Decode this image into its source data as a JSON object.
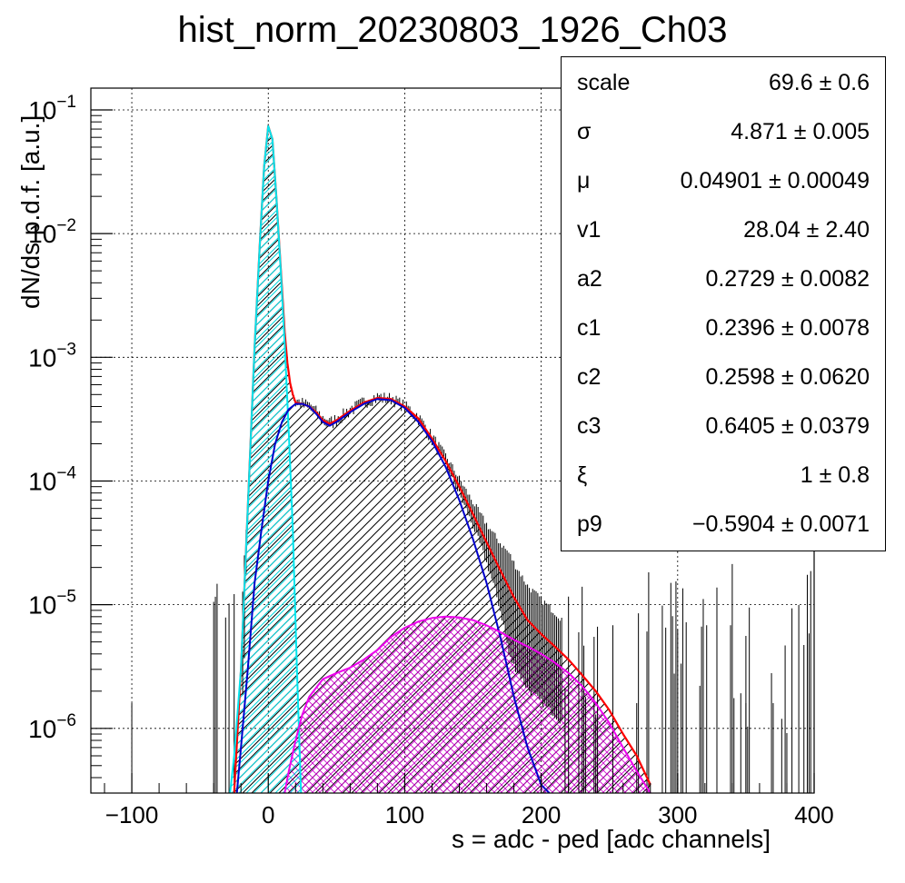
{
  "chart_data": {
    "type": "line",
    "title": "hist_norm_20230803_1926_Ch03",
    "xlabel": "s = adc - ped [adc channels]",
    "ylabel": "dN/ds p.d.f. [a.u.]",
    "xlim": [
      -130,
      400
    ],
    "ylim": [
      3e-07,
      0.15
    ],
    "yscale": "log",
    "grid": true,
    "x_ticks": [
      {
        "value": -100,
        "label": "−100"
      },
      {
        "value": 0,
        "label": "0"
      },
      {
        "value": 100,
        "label": "100"
      },
      {
        "value": 200,
        "label": "200"
      },
      {
        "value": 300,
        "label": "300"
      },
      {
        "value": 400,
        "label": "400"
      }
    ],
    "y_ticks": [
      {
        "value": 0.1,
        "base": "10",
        "exp": "−1"
      },
      {
        "value": 0.01,
        "base": "10",
        "exp": "−2"
      },
      {
        "value": 0.001,
        "base": "10",
        "exp": "−3"
      },
      {
        "value": 0.0001,
        "base": "10",
        "exp": "−4"
      },
      {
        "value": 1e-05,
        "base": "10",
        "exp": "−5"
      },
      {
        "value": 1e-06,
        "base": "10",
        "exp": "−6"
      }
    ],
    "series": [
      {
        "color": "#ff0000",
        "x": [
          -25,
          -20,
          -15,
          -10,
          -6,
          -3,
          0,
          3,
          6,
          9,
          12,
          14,
          16,
          18,
          20,
          25,
          30,
          35,
          40,
          45,
          50,
          60,
          70,
          80,
          90,
          100,
          110,
          120,
          130,
          140,
          150,
          160,
          170,
          180,
          190,
          200,
          210,
          220,
          230,
          240,
          250,
          260,
          270,
          280
        ],
        "y": [
          3e-07,
          3e-06,
          6e-05,
          0.0012,
          0.009,
          0.035,
          0.074,
          0.058,
          0.019,
          0.0055,
          0.0016,
          0.0009,
          0.00062,
          0.0005,
          0.00043,
          0.00042,
          0.0004,
          0.00036,
          0.00031,
          0.00029,
          0.00031,
          0.00037,
          0.00043,
          0.00047,
          0.00046,
          0.0004,
          0.00032,
          0.00022,
          0.000145,
          9e-05,
          5.4e-05,
          3.2e-05,
          1.9e-05,
          1.15e-05,
          7.5e-06,
          5.8e-06,
          4.6e-06,
          3.6e-06,
          2.7e-06,
          2e-06,
          1.4e-06,
          9e-07,
          6e-07,
          3.5e-07
        ]
      },
      {
        "color": "#00e5ee",
        "x": [
          -28,
          -25,
          -20,
          -15,
          -10,
          -6,
          -3,
          0,
          3,
          6,
          9,
          12,
          15,
          18,
          21,
          24
        ],
        "y": [
          3e-07,
          6e-07,
          3e-06,
          6e-05,
          0.0012,
          0.009,
          0.035,
          0.074,
          0.058,
          0.019,
          0.0053,
          0.0013,
          0.00025,
          4e-05,
          3e-06,
          3e-07
        ]
      },
      {
        "color": "#0000cc",
        "x": [
          -23,
          -20,
          -15,
          -10,
          -5,
          0,
          5,
          10,
          15,
          20,
          25,
          30,
          35,
          40,
          45,
          50,
          60,
          70,
          80,
          90,
          100,
          110,
          120,
          130,
          140,
          150,
          160,
          170,
          180,
          190,
          200,
          206
        ],
        "y": [
          3e-07,
          7e-07,
          3e-06,
          1.5e-05,
          4e-05,
          0.0001,
          0.0002,
          0.0003,
          0.00038,
          0.00042,
          0.00042,
          0.0004,
          0.00035,
          0.0003,
          0.00028,
          0.0003,
          0.00036,
          0.00042,
          0.00046,
          0.00045,
          0.00039,
          0.0003,
          0.00021,
          0.00013,
          7e-05,
          3.4e-05,
          1.5e-05,
          5.5e-06,
          1.8e-06,
          7e-07,
          3.5e-07,
          3e-07
        ]
      },
      {
        "color": "#ee00ee",
        "x": [
          12,
          15,
          20,
          25,
          30,
          40,
          50,
          60,
          70,
          80,
          90,
          100,
          110,
          120,
          130,
          140,
          150,
          160,
          170,
          180,
          190,
          200,
          210,
          220,
          230,
          240,
          250,
          260,
          270,
          280
        ],
        "y": [
          3e-07,
          4.5e-07,
          8e-07,
          1.3e-06,
          1.8e-06,
          2.5e-06,
          2.8e-06,
          3.1e-06,
          3.6e-06,
          4.3e-06,
          5.5e-06,
          6.5e-06,
          7.3e-06,
          7.8e-06,
          8e-06,
          7.9e-06,
          7.5e-06,
          6.8e-06,
          6e-06,
          5.2e-06,
          4.6e-06,
          4e-06,
          3.4e-06,
          2.8e-06,
          2.2e-06,
          1.6e-06,
          1.1e-06,
          7e-07,
          4.5e-07,
          3e-07
        ]
      }
    ]
  },
  "stats_box": {
    "rows": [
      {
        "name": "scale",
        "value": "69.6 ± 0.6"
      },
      {
        "name": "σ",
        "value": "4.871 ± 0.005"
      },
      {
        "name": "μ",
        "value": "0.04901 ± 0.00049"
      },
      {
        "name": "v1",
        "value": "28.04 ± 2.40"
      },
      {
        "name": "a2",
        "value": "0.2729 ± 0.0082"
      },
      {
        "name": "c1",
        "value": "0.2396 ± 0.0078"
      },
      {
        "name": "c2",
        "value": "0.2598 ± 0.0620"
      },
      {
        "name": "c3",
        "value": "0.6405 ± 0.0379"
      },
      {
        "name": "ξ",
        "value": "1 ± 0.8"
      },
      {
        "name": "p9",
        "value": "−0.5904 ± 0.0071"
      }
    ]
  }
}
